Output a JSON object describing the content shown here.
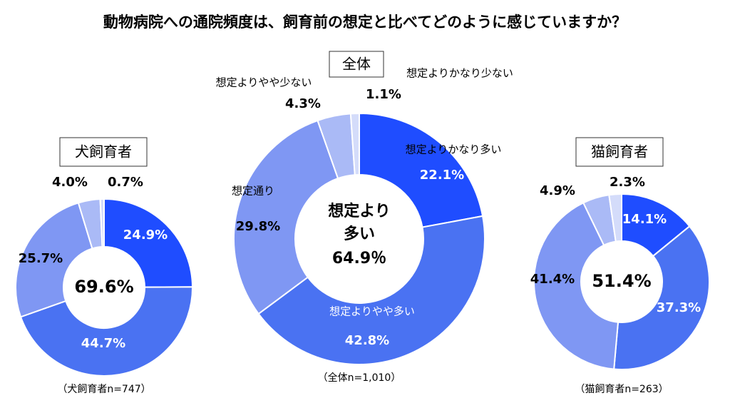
{
  "title": "動物病院への通院頻度は、飼育前の想定と比べてどのように感じていますか？",
  "chart_data": [
    {
      "type": "donut",
      "title": "犬飼育者",
      "values": [
        24.9,
        44.7,
        25.7,
        4.0,
        0.7
      ],
      "value_labels": [
        "24.9%",
        "44.7%",
        "25.7%",
        "4.0%",
        "0.7%"
      ],
      "colors": [
        "#1f4dff",
        "#4a72f2",
        "#7f97f3",
        "#aabaf6",
        "#d4dcfa"
      ],
      "center_label": {
        "value": 69.6,
        "label": "69.6%"
      },
      "note": "（犬飼育者n=747）"
    },
    {
      "type": "donut",
      "title": "全体",
      "categories": [
        "想定よりかなり多い",
        "想定よりやや多い",
        "想定通り",
        "想定よりやや少ない",
        "想定よりかなり少ない"
      ],
      "values": [
        22.1,
        42.8,
        29.8,
        4.3,
        1.1
      ],
      "value_labels": [
        "22.1%",
        "42.8%",
        "29.8%",
        "4.3%",
        "1.1%"
      ],
      "colors": [
        "#1f4dff",
        "#4a72f2",
        "#7f97f3",
        "#aabaf6",
        "#d4dcfa"
      ],
      "center_caption": [
        "想定より",
        "多い"
      ],
      "center_label": {
        "value": 64.9,
        "label": "64.9％"
      },
      "note": "（全体n=1,010）"
    },
    {
      "type": "donut",
      "title": "猫飼育者",
      "values": [
        14.1,
        37.3,
        41.4,
        4.9,
        2.3
      ],
      "value_labels": [
        "14.1%",
        "37.3%",
        "41.4%",
        "4.9%",
        "2.3%"
      ],
      "colors": [
        "#1f4dff",
        "#4a72f2",
        "#7f97f3",
        "#aabaf6",
        "#d4dcfa"
      ],
      "center_label": {
        "value": 51.4,
        "label": "51.4%"
      },
      "note": "（猫飼育者n=263）"
    }
  ]
}
